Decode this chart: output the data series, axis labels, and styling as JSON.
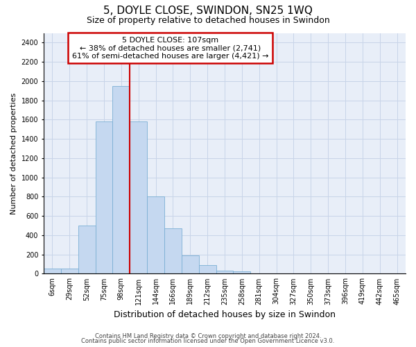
{
  "title": "5, DOYLE CLOSE, SWINDON, SN25 1WQ",
  "subtitle": "Size of property relative to detached houses in Swindon",
  "xlabel": "Distribution of detached houses by size in Swindon",
  "ylabel": "Number of detached properties",
  "footnote1": "Contains HM Land Registry data © Crown copyright and database right 2024.",
  "footnote2": "Contains public sector information licensed under the Open Government Licence v3.0.",
  "categories": [
    "6sqm",
    "29sqm",
    "52sqm",
    "75sqm",
    "98sqm",
    "121sqm",
    "144sqm",
    "166sqm",
    "189sqm",
    "212sqm",
    "235sqm",
    "258sqm",
    "281sqm",
    "304sqm",
    "327sqm",
    "350sqm",
    "373sqm",
    "396sqm",
    "419sqm",
    "442sqm",
    "465sqm"
  ],
  "values": [
    50,
    50,
    500,
    1580,
    1950,
    1580,
    800,
    470,
    190,
    90,
    30,
    25,
    5,
    0,
    0,
    5,
    0,
    0,
    0,
    0,
    0
  ],
  "bar_color": "#c5d8f0",
  "bar_edge_color": "#7aafd4",
  "vline_color": "#cc0000",
  "vline_x_idx": 4.5,
  "annotation_title": "5 DOYLE CLOSE: 107sqm",
  "annotation_line1": "← 38% of detached houses are smaller (2,741)",
  "annotation_line2": "61% of semi-detached houses are larger (4,421) →",
  "annotation_box_color": "white",
  "annotation_box_edge_color": "#cc0000",
  "ylim": [
    0,
    2500
  ],
  "yticks": [
    0,
    200,
    400,
    600,
    800,
    1000,
    1200,
    1400,
    1600,
    1800,
    2000,
    2200,
    2400
  ],
  "grid_color": "#c8d4e8",
  "bg_color": "#e8eef8",
  "title_fontsize": 11,
  "subtitle_fontsize": 9,
  "ylabel_fontsize": 8,
  "xlabel_fontsize": 9,
  "tick_fontsize": 7,
  "annot_fontsize": 8,
  "footnote_fontsize": 6
}
